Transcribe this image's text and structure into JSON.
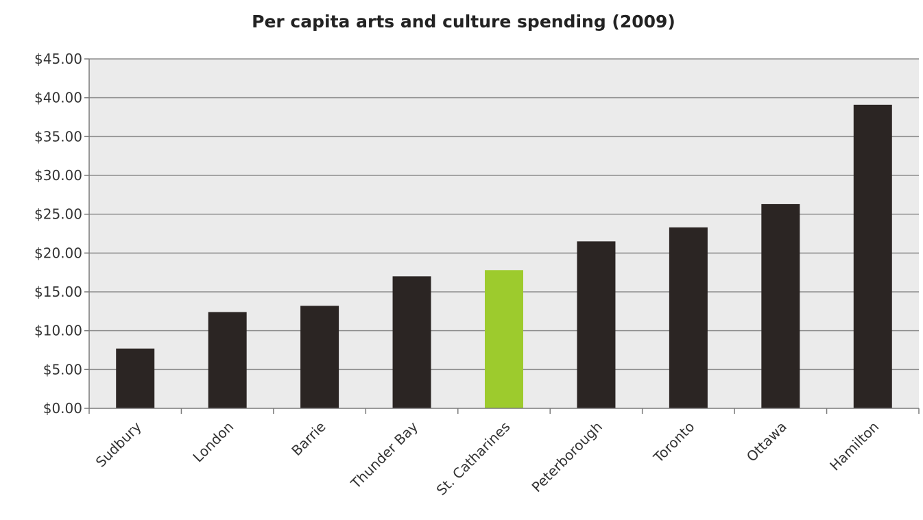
{
  "chart_data": {
    "type": "bar",
    "title": "Per capita arts and culture spending (2009)",
    "xlabel": "",
    "ylabel": "",
    "categories": [
      "Sudbury",
      "London",
      "Barrie",
      "Thunder Bay",
      "St. Catharines",
      "Peterborough",
      "Toronto",
      "Ottawa",
      "Hamilton"
    ],
    "values": [
      7.7,
      12.4,
      13.2,
      17.0,
      17.8,
      21.5,
      23.3,
      26.3,
      39.1
    ],
    "ylim": [
      0,
      45
    ],
    "yticks": [
      0,
      5,
      10,
      15,
      20,
      25,
      30,
      35,
      40,
      45
    ],
    "ytick_labels": [
      "$0.00",
      "$5.00",
      "$10.00",
      "$15.00",
      "$20.00",
      "$25.00",
      "$30.00",
      "$35.00",
      "$40.00",
      "$45.00"
    ],
    "grid": true,
    "legend": "none",
    "colors": {
      "bar": "#2b2523",
      "highlight": "#9dcb2d",
      "plot_background": "#ebebeb",
      "gridline": "#8c8c8c",
      "axis": "#7a7a7a"
    },
    "highlight_category": "St. Catharines"
  }
}
